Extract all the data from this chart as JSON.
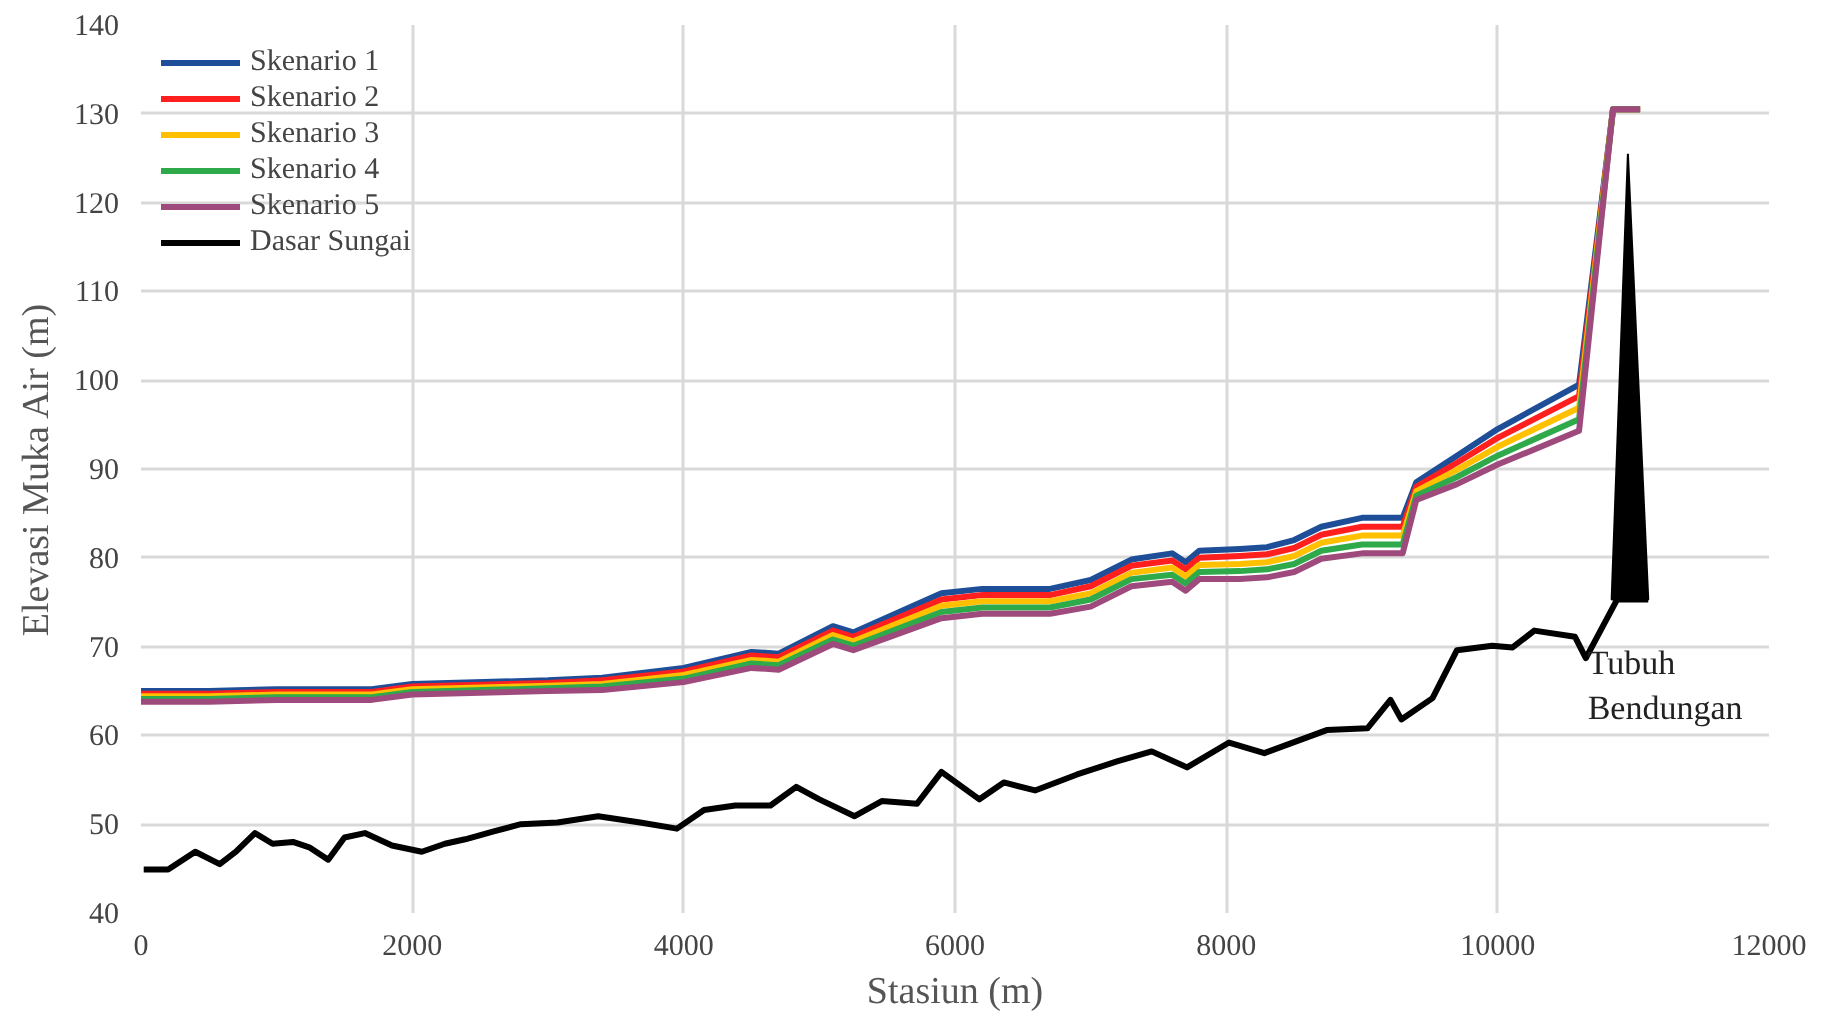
{
  "chart_data": {
    "type": "line",
    "xlabel": "Stasiun (m)",
    "ylabel": "Elevasi Muka Air (m)",
    "xlim": [
      0,
      12000
    ],
    "xticks": [
      0,
      2000,
      4000,
      6000,
      8000,
      10000,
      12000
    ],
    "ylim": [
      40,
      140
    ],
    "yticks": [
      40,
      50,
      60,
      70,
      80,
      90,
      100,
      110,
      120,
      130,
      140
    ],
    "grid": true,
    "legend": "top left",
    "marker": "none",
    "line_style": "solid",
    "annotations": [
      "Tubuh\nBendungan"
    ],
    "x": [
      0,
      500,
      1000,
      1700,
      2000,
      3000,
      3400,
      4000,
      4500,
      4700,
      5100,
      5250,
      5900,
      6200,
      6700,
      7000,
      7300,
      7600,
      7700,
      7800,
      8100,
      8300,
      8500,
      8700,
      9000,
      9300,
      9400,
      9700,
      10000,
      10600,
      10850,
      11050
    ],
    "series": [
      {
        "name": "Skenario 1",
        "color": "#1f4e99",
        "values": [
          65,
          65,
          65.2,
          65.2,
          65.8,
          66.2,
          66.5,
          67.6,
          69.4,
          69.2,
          72.3,
          71.6,
          76,
          76.5,
          76.5,
          77.5,
          79.8,
          80.5,
          79.5,
          80.8,
          81,
          81.2,
          82,
          83.5,
          84.5,
          84.5,
          88.5,
          91.5,
          94.5,
          99.5,
          130.5,
          130.5
        ]
      },
      {
        "name": "Skenario 2",
        "color": "#ff1f1f",
        "values": [
          64.7,
          64.7,
          64.9,
          64.9,
          65.5,
          65.9,
          66.2,
          67.2,
          69,
          68.8,
          71.8,
          71.1,
          75.3,
          75.8,
          75.8,
          76.8,
          79.1,
          79.7,
          78.7,
          80,
          80.2,
          80.4,
          81.1,
          82.6,
          83.5,
          83.5,
          88,
          90.7,
          93.5,
          98.2,
          130.5,
          130.5
        ]
      },
      {
        "name": "Skenario 3",
        "color": "#ffc000",
        "values": [
          64.4,
          64.4,
          64.6,
          64.6,
          65.2,
          65.6,
          65.8,
          66.8,
          68.5,
          68.3,
          71.3,
          70.6,
          74.6,
          75.1,
          75.1,
          76,
          78.3,
          78.9,
          77.9,
          79.2,
          79.3,
          79.5,
          80.2,
          81.7,
          82.5,
          82.5,
          87.5,
          89.9,
          92.5,
          96.9,
          130.5,
          130.5
        ]
      },
      {
        "name": "Skenario 4",
        "color": "#2eaa4a",
        "values": [
          64.1,
          64.1,
          64.3,
          64.3,
          64.9,
          65.3,
          65.5,
          66.4,
          68.1,
          67.9,
          70.8,
          70.1,
          73.9,
          74.4,
          74.4,
          75.3,
          77.6,
          78.1,
          77.1,
          78.4,
          78.5,
          78.7,
          79.3,
          80.8,
          81.5,
          81.5,
          87,
          89.1,
          91.5,
          95.6,
          130.5,
          130.5
        ]
      },
      {
        "name": "Skenario 5",
        "color": "#9e4a7c",
        "values": [
          63.8,
          63.8,
          64,
          64,
          64.6,
          65,
          65.1,
          66,
          67.6,
          67.4,
          70.3,
          69.6,
          73.2,
          73.7,
          73.7,
          74.5,
          76.8,
          77.3,
          76.3,
          77.6,
          77.6,
          77.8,
          78.4,
          79.9,
          80.5,
          80.5,
          86.5,
          88.3,
          90.5,
          94.3,
          130.5,
          130.5
        ]
      },
      {
        "name": "Dasar Sungai",
        "color": "#000000",
        "x": [
          20,
          200,
          400,
          580,
          700,
          840,
          970,
          1120,
          1240,
          1380,
          1500,
          1650,
          1850,
          2070,
          2240,
          2390,
          2600,
          2800,
          3070,
          3370,
          3680,
          3950,
          4150,
          4380,
          4640,
          4830,
          5000,
          5260,
          5460,
          5720,
          5900,
          6180,
          6360,
          6590,
          6900,
          7200,
          7450,
          7710,
          8020,
          8280,
          8740,
          9040,
          9210,
          9290,
          9520,
          9700,
          9960,
          10110,
          10270,
          10570,
          10650,
          10880,
          11110
        ],
        "values": [
          44.9,
          44.9,
          46.9,
          45.5,
          46.9,
          49,
          47.8,
          48,
          47.4,
          46,
          48.5,
          49,
          47.6,
          46.9,
          47.8,
          48.3,
          49.2,
          50,
          50.2,
          50.9,
          50.2,
          49.5,
          51.6,
          52.1,
          52.1,
          54.2,
          52.8,
          50.9,
          52.6,
          52.3,
          55.9,
          52.8,
          54.7,
          53.8,
          55.6,
          57.1,
          58.2,
          56.4,
          59.2,
          58,
          60.6,
          60.8,
          64,
          61.8,
          64.2,
          69.6,
          70.1,
          69.9,
          71.8,
          71.1,
          68.7,
          75.3,
          75.3
        ]
      },
      {
        "type": "area",
        "color": "#000000",
        "x": [
          10840,
          10960,
          11110
        ],
        "values": [
          75.3,
          125.5,
          75.3
        ]
      }
    ]
  }
}
